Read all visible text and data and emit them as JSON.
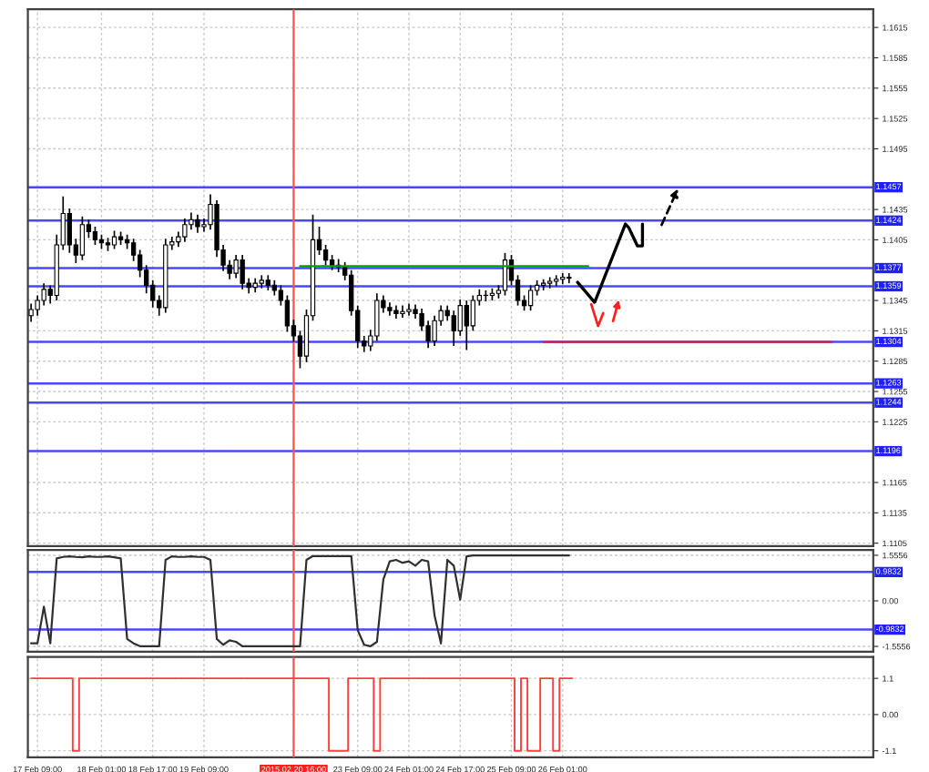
{
  "chart_data": [
    {
      "type": "candlestick",
      "color": "#000000",
      "categories": [
        null,
        "17 Feb 09:00",
        null,
        null,
        null,
        null,
        null,
        null,
        null,
        null,
        null,
        "18 Feb 01:00",
        null,
        null,
        null,
        null,
        null,
        null,
        null,
        "18 Feb 17:00",
        null,
        null,
        null,
        null,
        null,
        null,
        null,
        "19 Feb 09:00",
        null,
        null,
        null,
        null,
        null,
        null,
        null,
        null,
        null,
        null,
        null,
        null,
        null,
        "2015.02.20 16:00",
        null,
        null,
        null,
        null,
        null,
        null,
        null,
        null,
        null,
        "23 Feb 09:00",
        null,
        null,
        null,
        null,
        null,
        null,
        null,
        "24 Feb 01:00",
        null,
        null,
        null,
        null,
        null,
        null,
        null,
        "24 Feb 17:00",
        null,
        null,
        null,
        null,
        null,
        null,
        null,
        "25 Feb 09:00",
        null,
        null,
        null,
        null,
        null,
        null,
        null,
        "26 Feb 01:00",
        null,
        null,
        null,
        null,
        null,
        null,
        null,
        null,
        null,
        null,
        null,
        null,
        null,
        null,
        null,
        null,
        null,
        null,
        null,
        null,
        null,
        null,
        null,
        null,
        null,
        null,
        null,
        null,
        null,
        null,
        null,
        null,
        null,
        null,
        null,
        null,
        null,
        null,
        null,
        null,
        null,
        null,
        null,
        null,
        null,
        null,
        null,
        null
      ],
      "ohlc": [
        [
          1.133,
          1.1342,
          1.1324,
          1.1336
        ],
        [
          1.1336,
          1.135,
          1.133,
          1.1345
        ],
        [
          1.1345,
          1.1362,
          1.134,
          1.1356
        ],
        [
          1.1356,
          1.136,
          1.1342,
          1.135
        ],
        [
          1.135,
          1.141,
          1.1345,
          1.14
        ],
        [
          1.14,
          1.1448,
          1.1395,
          1.1431
        ],
        [
          1.1431,
          1.1436,
          1.1392,
          1.14
        ],
        [
          1.14,
          1.1406,
          1.1382,
          1.139
        ],
        [
          1.139,
          1.1428,
          1.1385,
          1.142
        ],
        [
          1.142,
          1.1425,
          1.1407,
          1.1413
        ],
        [
          1.1413,
          1.1418,
          1.14,
          1.1405
        ],
        [
          1.1405,
          1.141,
          1.1396,
          1.1402
        ],
        [
          1.1402,
          1.1407,
          1.1394,
          1.14
        ],
        [
          1.14,
          1.1414,
          1.1396,
          1.1408
        ],
        [
          1.1408,
          1.1413,
          1.14,
          1.1405
        ],
        [
          1.1405,
          1.141,
          1.1396,
          1.1402
        ],
        [
          1.1402,
          1.1406,
          1.1384,
          1.139
        ],
        [
          1.139,
          1.1395,
          1.1368,
          1.1375
        ],
        [
          1.1375,
          1.138,
          1.1352,
          1.136
        ],
        [
          1.136,
          1.1365,
          1.1338,
          1.1345
        ],
        [
          1.1345,
          1.135,
          1.133,
          1.1338
        ],
        [
          1.1338,
          1.1406,
          1.1333,
          1.14
        ],
        [
          1.14,
          1.1408,
          1.1395,
          1.1403
        ],
        [
          1.1403,
          1.1413,
          1.1398,
          1.1408
        ],
        [
          1.1408,
          1.1426,
          1.1403,
          1.142
        ],
        [
          1.142,
          1.1432,
          1.1415,
          1.1425
        ],
        [
          1.1425,
          1.143,
          1.1412,
          1.1418
        ],
        [
          1.1418,
          1.1426,
          1.1413,
          1.142
        ],
        [
          1.142,
          1.145,
          1.1415,
          1.144
        ],
        [
          1.144,
          1.1444,
          1.1388,
          1.1395
        ],
        [
          1.1395,
          1.14,
          1.1374,
          1.138
        ],
        [
          1.138,
          1.1385,
          1.1366,
          1.1372
        ],
        [
          1.1372,
          1.139,
          1.1367,
          1.1385
        ],
        [
          1.1385,
          1.139,
          1.1356,
          1.1362
        ],
        [
          1.1362,
          1.1367,
          1.1352,
          1.1358
        ],
        [
          1.1358,
          1.1367,
          1.1353,
          1.1362
        ],
        [
          1.1362,
          1.137,
          1.1357,
          1.1365
        ],
        [
          1.1365,
          1.137,
          1.1355,
          1.136
        ],
        [
          1.136,
          1.1365,
          1.135,
          1.1355
        ],
        [
          1.1355,
          1.136,
          1.134,
          1.1345
        ],
        [
          1.1345,
          1.135,
          1.1314,
          1.132
        ],
        [
          1.132,
          1.1326,
          1.1304,
          1.131
        ],
        [
          1.131,
          1.1315,
          1.1278,
          1.129
        ],
        [
          1.129,
          1.1336,
          1.1284,
          1.133
        ],
        [
          1.133,
          1.143,
          1.1325,
          1.1405
        ],
        [
          1.1405,
          1.1418,
          1.139,
          1.1395
        ],
        [
          1.1395,
          1.14,
          1.138,
          1.1385
        ],
        [
          1.1385,
          1.139,
          1.1375,
          1.138
        ],
        [
          1.138,
          1.1386,
          1.1373,
          1.1378
        ],
        [
          1.1378,
          1.1383,
          1.1365,
          1.137
        ],
        [
          1.137,
          1.1375,
          1.133,
          1.1335
        ],
        [
          1.1335,
          1.134,
          1.1298,
          1.1305
        ],
        [
          1.1305,
          1.131,
          1.1294,
          1.13
        ],
        [
          1.13,
          1.1316,
          1.1295,
          1.131
        ],
        [
          1.131,
          1.1352,
          1.1305,
          1.1345
        ],
        [
          1.1345,
          1.135,
          1.1333,
          1.1338
        ],
        [
          1.1338,
          1.1343,
          1.133,
          1.1335
        ],
        [
          1.1335,
          1.134,
          1.1327,
          1.1332
        ],
        [
          1.1332,
          1.134,
          1.1328,
          1.1334
        ],
        [
          1.1334,
          1.1342,
          1.133,
          1.1336
        ],
        [
          1.1336,
          1.1341,
          1.1327,
          1.1332
        ],
        [
          1.1332,
          1.1337,
          1.1315,
          1.132
        ],
        [
          1.132,
          1.1325,
          1.1298,
          1.1305
        ],
        [
          1.1305,
          1.133,
          1.13,
          1.1325
        ],
        [
          1.1325,
          1.134,
          1.132,
          1.1335
        ],
        [
          1.1335,
          1.134,
          1.1325,
          1.133
        ],
        [
          1.133,
          1.1335,
          1.13,
          1.1315
        ],
        [
          1.1315,
          1.1346,
          1.131,
          1.134
        ],
        [
          1.134,
          1.1345,
          1.1296,
          1.132
        ],
        [
          1.132,
          1.135,
          1.1315,
          1.1345
        ],
        [
          1.1345,
          1.1356,
          1.134,
          1.135
        ],
        [
          1.135,
          1.1355,
          1.1344,
          1.135
        ],
        [
          1.135,
          1.1357,
          1.1345,
          1.1352
        ],
        [
          1.1352,
          1.136,
          1.1347,
          1.1355
        ],
        [
          1.1355,
          1.1392,
          1.135,
          1.1385
        ],
        [
          1.1385,
          1.139,
          1.136,
          1.1365
        ],
        [
          1.1365,
          1.137,
          1.134,
          1.1345
        ],
        [
          1.1345,
          1.135,
          1.1335,
          1.134
        ],
        [
          1.134,
          1.136,
          1.1335,
          1.1355
        ],
        [
          1.1355,
          1.1365,
          1.135,
          1.136
        ],
        [
          1.136,
          1.1366,
          1.1355,
          1.1362
        ],
        [
          1.1362,
          1.1368,
          1.1357,
          1.1364
        ],
        [
          1.1364,
          1.137,
          1.1359,
          1.1366
        ],
        [
          1.1366,
          1.1372,
          1.1361,
          1.1368
        ],
        [
          1.1368,
          1.1372,
          1.1362,
          1.1367
        ],
        null,
        null,
        null,
        null,
        null,
        null,
        null,
        null,
        null,
        null,
        null,
        null,
        null,
        null,
        null,
        null,
        null,
        null,
        null,
        null,
        null,
        null,
        null,
        null,
        null,
        null,
        null,
        null,
        null,
        null,
        null,
        null,
        null,
        null,
        null,
        null,
        null,
        null,
        null,
        null,
        null,
        null,
        null,
        null,
        null,
        null,
        null
      ],
      "series": [
        {
          "type": "line",
          "color": "#00a000",
          "values": [
            null,
            null,
            null,
            null,
            null,
            null,
            null,
            null,
            null,
            null,
            null,
            null,
            null,
            null,
            null,
            null,
            null,
            null,
            null,
            null,
            null,
            null,
            null,
            null,
            null,
            null,
            null,
            null,
            null,
            null,
            null,
            null,
            null,
            null,
            null,
            null,
            null,
            null,
            null,
            null,
            null,
            null,
            1.1379,
            1.1379,
            1.1379,
            1.1379,
            1.1379,
            1.1379,
            1.1379,
            1.1379,
            1.1379,
            1.1379,
            1.1379,
            1.1379,
            1.1379,
            1.1379,
            1.1379,
            1.1379,
            1.1379,
            1.1379,
            1.1379,
            1.1379,
            1.1379,
            1.1379,
            1.1379,
            1.1379,
            1.1379,
            1.1379,
            1.1379,
            1.1379,
            1.1379,
            1.1379,
            1.1379,
            1.1379,
            1.1379,
            1.1379,
            1.1379,
            1.1379,
            1.1379,
            1.1379,
            1.1379,
            1.1379,
            1.1379,
            1.1379,
            1.1379,
            1.1379,
            1.1379,
            1.1379,
            null,
            null,
            null,
            null,
            null,
            null,
            null,
            null,
            null,
            null,
            null,
            null,
            null,
            null,
            null,
            null,
            null,
            null,
            null,
            null,
            null,
            null,
            null,
            null,
            null,
            null,
            null,
            null,
            null,
            null,
            null,
            null,
            null,
            null,
            null,
            null,
            null,
            null,
            null,
            null,
            null,
            null,
            null,
            null
          ]
        },
        {
          "type": "line",
          "color": "#e02020",
          "values": [
            null,
            null,
            null,
            null,
            null,
            null,
            null,
            null,
            null,
            null,
            null,
            null,
            null,
            null,
            null,
            null,
            null,
            null,
            null,
            null,
            null,
            null,
            null,
            null,
            null,
            null,
            null,
            null,
            null,
            null,
            null,
            null,
            null,
            null,
            null,
            null,
            null,
            null,
            null,
            null,
            null,
            null,
            null,
            null,
            null,
            null,
            null,
            null,
            null,
            null,
            null,
            null,
            null,
            null,
            null,
            null,
            null,
            null,
            null,
            null,
            null,
            null,
            null,
            null,
            null,
            null,
            null,
            null,
            null,
            null,
            null,
            null,
            null,
            null,
            null,
            null,
            null,
            null,
            null,
            null,
            1.1304,
            1.1304,
            1.1304,
            1.1304,
            1.1304,
            1.1304,
            1.1304,
            1.1304,
            1.1304,
            1.1304,
            1.1304,
            1.1304,
            1.1304,
            1.1304,
            1.1304,
            1.1304,
            1.1304,
            1.1304,
            1.1304,
            1.1304,
            1.1304,
            1.1304,
            1.1304,
            1.1304,
            1.1304,
            1.1304,
            1.1304,
            1.1304,
            1.1304,
            1.1304,
            1.1304,
            1.1304,
            1.1304,
            1.1304,
            1.1304,
            1.1304,
            1.1304,
            1.1304,
            1.1304,
            1.1304,
            1.1304,
            1.1304,
            1.1304,
            1.1304,
            1.1304,
            1.1304,
            null,
            null,
            null,
            null,
            null,
            null
          ]
        }
      ],
      "ylim": [
        1.1102,
        1.1633
      ],
      "yticks": [
        1.1615,
        1.1585,
        1.1555,
        1.1525,
        1.1495,
        1.1435,
        1.1405,
        1.1345,
        1.1315,
        1.1285,
        1.1255,
        1.1225,
        1.1165,
        1.1135,
        1.1105
      ],
      "ref_lines": [
        {
          "axis": "y",
          "value": 1.1457,
          "label": "1.1457",
          "color": "#4848ff"
        },
        {
          "axis": "y",
          "value": 1.1424,
          "label": "1.1424",
          "color": "#4848ff"
        },
        {
          "axis": "y",
          "value": 1.1377,
          "label": "1.1377",
          "color": "#4848ff"
        },
        {
          "axis": "y",
          "value": 1.1359,
          "label": "1.1359",
          "color": "#4848ff"
        },
        {
          "axis": "y",
          "value": 1.1304,
          "label": "1.1304",
          "color": "#4848ff"
        },
        {
          "axis": "y",
          "value": 1.1263,
          "label": "1.1263",
          "color": "#4848ff"
        },
        {
          "axis": "y",
          "value": 1.1244,
          "label": "1.1244",
          "color": "#4848ff"
        },
        {
          "axis": "y",
          "value": 1.1196,
          "label": "1.1196",
          "color": "#4848ff"
        },
        {
          "axis": "x",
          "value": "2015.02.20 16:00",
          "color": "#ff5050"
        }
      ],
      "grid": true,
      "tick_labels": "y"
    },
    {
      "type": "line",
      "color": "#303030",
      "categories": [
        null,
        "17 Feb 09:00",
        null,
        null,
        null,
        null,
        null,
        null,
        null,
        null,
        null,
        "18 Feb 01:00",
        null,
        null,
        null,
        null,
        null,
        null,
        null,
        "18 Feb 17:00",
        null,
        null,
        null,
        null,
        null,
        null,
        null,
        "19 Feb 09:00",
        null,
        null,
        null,
        null,
        null,
        null,
        null,
        null,
        null,
        null,
        null,
        null,
        null,
        "2015.02.20 16:00",
        null,
        null,
        null,
        null,
        null,
        null,
        null,
        null,
        null,
        "23 Feb 09:00",
        null,
        null,
        null,
        null,
        null,
        null,
        null,
        "24 Feb 01:00",
        null,
        null,
        null,
        null,
        null,
        null,
        null,
        "24 Feb 17:00",
        null,
        null,
        null,
        null,
        null,
        null,
        null,
        "25 Feb 09:00",
        null,
        null,
        null,
        null,
        null,
        null,
        null,
        "26 Feb 01:00",
        null,
        null,
        null,
        null,
        null,
        null,
        null,
        null,
        null,
        null,
        null,
        null,
        null,
        null,
        null,
        null,
        null,
        null,
        null,
        null,
        null,
        null,
        null,
        null,
        null,
        null,
        null,
        null,
        null,
        null,
        null,
        null,
        null,
        null,
        null,
        null,
        null,
        null,
        null,
        null,
        null,
        null,
        null,
        null,
        null,
        null,
        null,
        null
      ],
      "values": [
        -1.45,
        -1.45,
        -0.2,
        -1.45,
        1.45,
        1.5,
        1.52,
        1.5,
        1.49,
        1.52,
        1.5,
        1.5,
        1.52,
        1.49,
        1.45,
        -1.3,
        -1.45,
        -1.55,
        -1.55,
        -1.55,
        -1.55,
        1.4,
        1.52,
        1.5,
        1.5,
        1.52,
        1.5,
        1.5,
        1.4,
        -1.3,
        -1.5,
        -1.35,
        -1.4,
        -1.55,
        -1.55,
        -1.55,
        -1.55,
        -1.55,
        -1.55,
        -1.55,
        -1.55,
        -1.55,
        -1.55,
        1.4,
        1.53,
        1.53,
        1.53,
        1.53,
        1.53,
        1.53,
        1.53,
        -1.0,
        -1.5,
        -1.55,
        -1.4,
        0.73,
        1.35,
        1.4,
        1.3,
        1.35,
        1.2,
        1.4,
        1.35,
        -0.5,
        -1.45,
        1.4,
        1.2,
        0.04,
        1.52,
        1.55,
        1.55,
        1.55,
        1.55,
        1.55,
        1.55,
        1.55,
        1.55,
        1.55,
        1.55,
        1.55,
        1.55,
        1.55,
        1.55,
        1.55,
        1.55,
        null,
        null,
        null,
        null,
        null,
        null,
        null,
        null,
        null,
        null,
        null,
        null,
        null,
        null,
        null,
        null,
        null,
        null,
        null,
        null,
        null,
        null,
        null,
        null,
        null,
        null,
        null,
        null,
        null,
        null,
        null,
        null,
        null,
        null,
        null,
        null,
        null,
        null,
        null,
        null,
        null,
        null,
        null,
        null,
        null,
        null,
        null
      ],
      "ylim": [
        -1.74,
        1.74
      ],
      "yticks": [
        1.5556,
        {
          "value": 0,
          "label": "0.00"
        },
        -1.5556
      ],
      "ref_lines": [
        {
          "axis": "y",
          "value": 0.9832,
          "label": "0.9832",
          "color": "#4848ff"
        },
        {
          "axis": "y",
          "value": -0.9832,
          "label": "-0.9832",
          "color": "#4848ff"
        },
        {
          "axis": "x",
          "value": "2015.02.20 16:00",
          "color": "#ff5050"
        }
      ],
      "grid": true,
      "tick_labels": "y"
    },
    {
      "type": "step",
      "color": "#ff4040",
      "categories": [
        null,
        "17 Feb 09:00",
        null,
        null,
        null,
        null,
        null,
        null,
        null,
        null,
        null,
        "18 Feb 01:00",
        null,
        null,
        null,
        null,
        null,
        null,
        null,
        "18 Feb 17:00",
        null,
        null,
        null,
        null,
        null,
        null,
        null,
        "19 Feb 09:00",
        null,
        null,
        null,
        null,
        null,
        null,
        null,
        null,
        null,
        null,
        null,
        null,
        null,
        "2015.02.20 16:00",
        null,
        null,
        null,
        null,
        null,
        null,
        null,
        null,
        null,
        "23 Feb 09:00",
        null,
        null,
        null,
        null,
        null,
        null,
        null,
        "24 Feb 01:00",
        null,
        null,
        null,
        null,
        null,
        null,
        null,
        "24 Feb 17:00",
        null,
        null,
        null,
        null,
        null,
        null,
        null,
        "25 Feb 09:00",
        null,
        null,
        null,
        null,
        null,
        null,
        null,
        "26 Feb 01:00",
        null,
        null,
        null,
        null,
        null,
        null,
        null,
        null,
        null,
        null,
        null,
        null,
        null,
        null,
        null,
        null,
        null,
        null,
        null,
        null,
        null,
        null,
        null,
        null,
        null,
        null,
        null,
        null,
        null,
        null,
        null,
        null,
        null,
        null,
        null,
        null,
        null,
        null,
        null,
        null,
        null,
        null,
        null,
        null,
        null,
        null,
        null,
        null
      ],
      "values": [
        1.1,
        1.1,
        1.1,
        1.1,
        1.1,
        1.1,
        1.1,
        -1.1,
        1.1,
        1.1,
        1.1,
        1.1,
        1.1,
        1.1,
        1.1,
        1.1,
        1.1,
        1.1,
        1.1,
        1.1,
        1.1,
        1.1,
        1.1,
        1.1,
        1.1,
        1.1,
        1.1,
        1.1,
        1.1,
        1.1,
        1.1,
        1.1,
        1.1,
        1.1,
        1.1,
        1.1,
        1.1,
        1.1,
        1.1,
        1.1,
        1.1,
        1.1,
        1.1,
        1.1,
        1.1,
        1.1,
        1.1,
        -1.1,
        -1.1,
        -1.1,
        1.1,
        1.1,
        1.1,
        1.1,
        -1.1,
        1.1,
        1.1,
        1.1,
        1.1,
        1.1,
        1.1,
        1.1,
        1.1,
        1.1,
        1.1,
        1.1,
        1.1,
        1.1,
        1.1,
        1.1,
        1.1,
        1.1,
        1.1,
        1.1,
        1.1,
        1.1,
        -1.1,
        1.1,
        -1.1,
        -1.1,
        1.1,
        1.1,
        -1.1,
        1.1,
        1.1,
        null,
        null,
        null,
        null,
        null,
        null,
        null,
        null,
        null,
        null,
        null,
        null,
        null,
        null,
        null,
        null,
        null,
        null,
        null,
        null,
        null,
        null,
        null,
        null,
        null,
        null,
        null,
        null,
        null,
        null,
        null,
        null,
        null,
        null,
        null,
        null,
        null,
        null,
        null,
        null,
        null,
        null,
        null,
        null,
        null,
        null,
        null
      ],
      "ylim": [
        -1.3,
        1.75
      ],
      "yticks": [
        1.1,
        {
          "value": 0,
          "label": "0.00"
        },
        -1.1
      ],
      "ref_lines": [
        {
          "axis": "x",
          "value": "2015.02.20 16:00",
          "color": "#ff5050"
        }
      ],
      "grid": true
    }
  ]
}
